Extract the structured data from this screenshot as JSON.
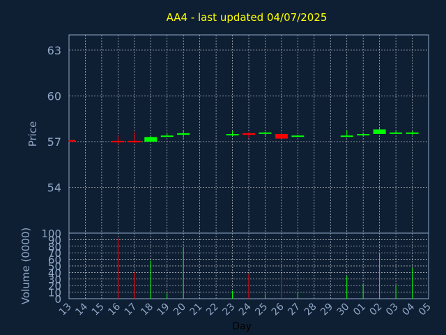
{
  "chart_data": {
    "type": "candlestick",
    "title": "AA4 - last updated 04/07/2025",
    "xlabel": "Day",
    "price_panel": {
      "ylabel": "Price",
      "ylim": [
        51,
        64
      ],
      "yticks": [
        54,
        57,
        60,
        63
      ]
    },
    "volume_panel": {
      "ylabel": "Volume (0000)",
      "ylim": [
        0,
        100
      ],
      "yticks": [
        0,
        10,
        20,
        30,
        40,
        50,
        60,
        70,
        80,
        90,
        100
      ]
    },
    "categories": [
      "13",
      "14",
      "15",
      "16",
      "17",
      "18",
      "19",
      "20",
      "21",
      "22",
      "23",
      "24",
      "25",
      "26",
      "27",
      "28",
      "29",
      "30",
      "01",
      "02",
      "03",
      "04",
      "05"
    ],
    "candles": [
      {
        "day": "13",
        "open": 57.1,
        "close": 57.0,
        "high": 57.1,
        "low": 57.0,
        "volume": 0
      },
      {
        "day": "16",
        "open": 57.05,
        "close": 57.0,
        "high": 57.4,
        "low": 56.8,
        "volume": 92
      },
      {
        "day": "17",
        "open": 57.05,
        "close": 57.0,
        "high": 57.6,
        "low": 56.9,
        "volume": 40
      },
      {
        "day": "18",
        "open": 57.0,
        "close": 57.3,
        "high": 57.35,
        "low": 56.95,
        "volume": 58
      },
      {
        "day": "19",
        "open": 57.35,
        "close": 57.4,
        "high": 57.55,
        "low": 57.35,
        "volume": 8
      },
      {
        "day": "20",
        "open": 57.45,
        "close": 57.55,
        "high": 57.75,
        "low": 57.25,
        "volume": 78
      },
      {
        "day": "23",
        "open": 57.45,
        "close": 57.5,
        "high": 57.7,
        "low": 57.35,
        "volume": 12
      },
      {
        "day": "24",
        "open": 57.55,
        "close": 57.45,
        "high": 57.6,
        "low": 57.25,
        "volume": 38
      },
      {
        "day": "25",
        "open": 57.55,
        "close": 57.6,
        "high": 57.65,
        "low": 57.35,
        "volume": 8
      },
      {
        "day": "26",
        "open": 57.5,
        "close": 57.2,
        "high": 57.6,
        "low": 57.2,
        "volume": 38
      },
      {
        "day": "27",
        "open": 57.35,
        "close": 57.4,
        "high": 57.45,
        "low": 57.3,
        "volume": 10
      },
      {
        "day": "30",
        "open": 57.35,
        "close": 57.4,
        "high": 57.75,
        "low": 57.3,
        "volume": 35
      },
      {
        "day": "01",
        "open": 57.45,
        "close": 57.5,
        "high": 57.6,
        "low": 57.35,
        "volume": 22
      },
      {
        "day": "02",
        "open": 57.5,
        "close": 57.8,
        "high": 57.9,
        "low": 57.5,
        "volume": 70
      },
      {
        "day": "03",
        "open": 57.55,
        "close": 57.6,
        "high": 57.7,
        "low": 57.5,
        "volume": 20
      },
      {
        "day": "04",
        "open": 57.55,
        "close": 57.6,
        "high": 57.7,
        "low": 57.45,
        "volume": 47
      }
    ],
    "colors": {
      "up": "#00ff00",
      "down": "#ff0000",
      "background": "#0f1f33",
      "axis_text": "#8fa8c8",
      "title": "#ffff00"
    },
    "grid": true
  }
}
